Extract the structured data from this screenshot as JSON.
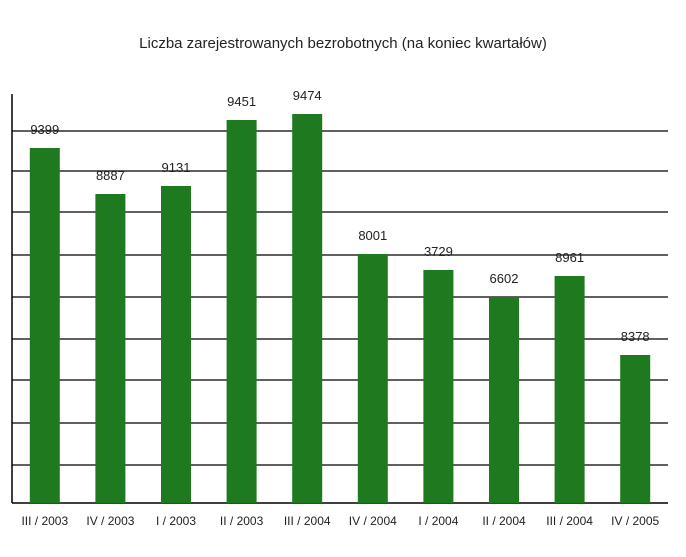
{
  "chart_data": {
    "type": "bar",
    "title": "Liczba zarejestrowanych bezrobotnych (na koniec kwartałów)",
    "categories": [
      "III / 2003",
      "IV / 2003",
      "I / 2003",
      "II / 2003",
      "III / 2004",
      "IV / 2004",
      "I / 2004",
      "II / 2004",
      "III / 2004",
      "IV / 2005"
    ],
    "values": [
      9399,
      8887,
      9131,
      9451,
      9474,
      8001,
      3729,
      6602,
      8961,
      8378
    ],
    "display_labels": [
      "9399",
      "8887",
      "9131",
      "9451",
      "9474",
      "8001",
      "3729",
      "6602",
      "8961",
      "8378"
    ],
    "bar_color": "#1f7a1f",
    "grid": true,
    "legend": "none",
    "xlabel": "",
    "ylabel": ""
  }
}
